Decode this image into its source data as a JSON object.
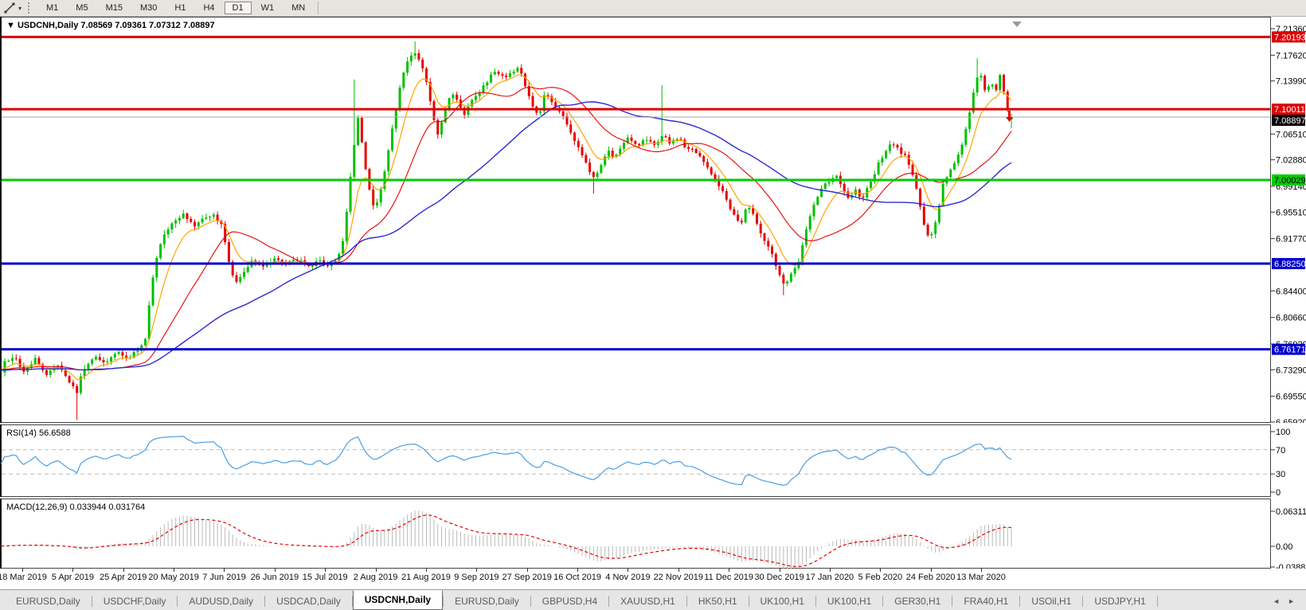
{
  "toolbar": {
    "tool_icon": "line-tool-icon",
    "caret": "▾",
    "timeframes": [
      "M1",
      "M5",
      "M15",
      "M30",
      "H1",
      "H4",
      "D1",
      "W1",
      "MN"
    ],
    "active_timeframe": "D1"
  },
  "chart": {
    "marker": "▼",
    "title": "USDCNH,Daily",
    "open": "7.08569",
    "high": "7.09361",
    "low": "7.07312",
    "close": "7.08897"
  },
  "price_axis": {
    "ticks": [
      "7.21360",
      "7.17620",
      "7.13990",
      "7.06510",
      "7.02880",
      "6.99140",
      "6.95510",
      "6.91770",
      "6.84400",
      "6.80660",
      "6.76920",
      "6.73290",
      "6.69550",
      "6.65920"
    ],
    "badges": [
      {
        "label": "7.20193",
        "price": 7.20193,
        "bg": "#dd0000",
        "fg": "#ffffff",
        "dy": 0
      },
      {
        "label": "7.10011",
        "price": 7.10011,
        "bg": "#dd0000",
        "fg": "#ffffff",
        "dy": 0
      },
      {
        "label": "7.08897",
        "price": 7.08897,
        "bg": "#000000",
        "fg": "#ffffff",
        "dy": 4
      },
      {
        "label": "7.00029",
        "price": 7.00029,
        "bg": "#00cc00",
        "fg": "#000000",
        "dy": 0
      },
      {
        "label": "6.88250",
        "price": 6.8825,
        "bg": "#0000cc",
        "fg": "#ffffff",
        "dy": 0
      },
      {
        "label": "6.76171",
        "price": 6.76171,
        "bg": "#0000cc",
        "fg": "#ffffff",
        "dy": 0
      }
    ]
  },
  "rsi_panel": {
    "label": "RSI(14) 56.6588",
    "levels": [
      {
        "label": "100",
        "value": 100,
        "dashed": false
      },
      {
        "label": "70",
        "value": 70,
        "dashed": true
      },
      {
        "label": "30",
        "value": 30,
        "dashed": true
      },
      {
        "label": "0",
        "value": 0,
        "dashed": false
      }
    ]
  },
  "macd_panel": {
    "label": "MACD(12,26,9) 0.033944 0.031764",
    "levels": [
      {
        "label": "0.063113",
        "value": 0.063113
      },
      {
        "label": "0.00",
        "value": 0
      },
      {
        "label": "-0.038872",
        "value": -0.038872
      }
    ]
  },
  "date_axis": {
    "labels": [
      "18 Mar 2019",
      "5 Apr 2019",
      "25 Apr 2019",
      "20 May 2019",
      "7 Jun 2019",
      "26 Jun 2019",
      "15 Jul 2019",
      "2 Aug 2019",
      "21 Aug 2019",
      "9 Sep 2019",
      "27 Sep 2019",
      "16 Oct 2019",
      "4 Nov 2019",
      "22 Nov 2019",
      "11 Dec 2019",
      "30 Dec 2019",
      "17 Jan 2020",
      "5 Feb 2020",
      "24 Feb 2020",
      "13 Mar 2020"
    ]
  },
  "tabs": {
    "items": [
      {
        "label": "EURUSD,Daily",
        "active": false
      },
      {
        "label": "USDCHF,Daily",
        "active": false
      },
      {
        "label": "AUDUSD,Daily",
        "active": false
      },
      {
        "label": "USDCAD,Daily",
        "active": false
      },
      {
        "label": "USDCNH,Daily",
        "active": true
      },
      {
        "label": "EURUSD,Daily",
        "active": false
      },
      {
        "label": "GBPUSD,H4",
        "active": false
      },
      {
        "label": "XAUUSD,H1",
        "active": false
      },
      {
        "label": "HK50,H1",
        "active": false
      },
      {
        "label": "UK100,H1",
        "active": false
      },
      {
        "label": "UK100,H1",
        "active": false
      },
      {
        "label": "GER30,H1",
        "active": false
      },
      {
        "label": "FRA40,H1",
        "active": false
      },
      {
        "label": "USOil,H1",
        "active": false
      },
      {
        "label": "USDJPY,H1",
        "active": false
      }
    ],
    "left_arrow": "◄",
    "right_arrow": "►"
  },
  "colors": {
    "bull": "#00c000",
    "bear": "#e60000",
    "ma_fast": "#ffa500",
    "ma_mid": "#e60000",
    "ma_slow": "#2a2ad4",
    "rsi_line": "#4c9ee0",
    "level_dash": "#bbbbbb",
    "macd_hist": "#b9b9b9",
    "macd_signal": "#e60000",
    "line_red": "#dd0000",
    "line_green": "#00cc00",
    "line_blue": "#0000cc",
    "current_price_line": "#aaaaaa",
    "frame": "#444444",
    "end_marker": "#999999"
  },
  "chart_data": {
    "type": "candlestick",
    "symbol": "USDCNH",
    "timeframe": "Daily",
    "last_ohlc": {
      "open": 7.08569,
      "high": 7.09361,
      "low": 7.07312,
      "close": 7.08897
    },
    "current_price": 7.08897,
    "y_range": [
      6.631,
      7.23
    ],
    "horizontal_lines": [
      {
        "price": 7.20193,
        "color": "#dd0000"
      },
      {
        "price": 7.10011,
        "color": "#dd0000"
      },
      {
        "price": 7.00029,
        "color": "#00cc00"
      },
      {
        "price": 6.8825,
        "color": "#0000cc"
      },
      {
        "price": 6.76171,
        "color": "#0000cc"
      }
    ],
    "moving_averages": [
      {
        "type": "ema",
        "period": 8,
        "color": "#ffa500"
      },
      {
        "type": "sma",
        "period": 22,
        "color": "#e60000"
      },
      {
        "type": "sma",
        "period": 55,
        "color": "#2a2ad4"
      }
    ],
    "rsi": {
      "period": 14,
      "value": 56.6588,
      "upper": 70,
      "lower": 30
    },
    "macd": {
      "fast": 12,
      "slow": 26,
      "signal": 9,
      "value": 0.033944,
      "signal_value": 0.031764
    },
    "price_path": [
      [
        4,
        6.742
      ],
      [
        18,
        6.752
      ],
      [
        30,
        6.73
      ],
      [
        44,
        6.748
      ],
      [
        58,
        6.726
      ],
      [
        72,
        6.742
      ],
      [
        86,
        6.718
      ],
      [
        96,
        6.7
      ],
      [
        104,
        6.732
      ],
      [
        118,
        6.752
      ],
      [
        132,
        6.742
      ],
      [
        146,
        6.758
      ],
      [
        160,
        6.747
      ],
      [
        172,
        6.76
      ],
      [
        182,
        6.772
      ],
      [
        190,
        6.85
      ],
      [
        198,
        6.9
      ],
      [
        208,
        6.928
      ],
      [
        220,
        6.945
      ],
      [
        232,
        6.952
      ],
      [
        244,
        6.934
      ],
      [
        256,
        6.946
      ],
      [
        268,
        6.952
      ],
      [
        278,
        6.936
      ],
      [
        288,
        6.882
      ],
      [
        296,
        6.856
      ],
      [
        306,
        6.872
      ],
      [
        318,
        6.888
      ],
      [
        330,
        6.876
      ],
      [
        344,
        6.89
      ],
      [
        358,
        6.88
      ],
      [
        372,
        6.89
      ],
      [
        386,
        6.878
      ],
      [
        400,
        6.886
      ],
      [
        412,
        6.878
      ],
      [
        424,
        6.888
      ],
      [
        432,
        6.92
      ],
      [
        438,
        6.985
      ],
      [
        444,
        7.045
      ],
      [
        450,
        7.09
      ],
      [
        456,
        7.04
      ],
      [
        462,
        6.995
      ],
      [
        470,
        6.96
      ],
      [
        478,
        6.985
      ],
      [
        486,
        7.03
      ],
      [
        494,
        7.08
      ],
      [
        502,
        7.13
      ],
      [
        510,
        7.165
      ],
      [
        518,
        7.18
      ],
      [
        526,
        7.172
      ],
      [
        534,
        7.15
      ],
      [
        542,
        7.1
      ],
      [
        550,
        7.062
      ],
      [
        558,
        7.095
      ],
      [
        566,
        7.125
      ],
      [
        574,
        7.112
      ],
      [
        582,
        7.09
      ],
      [
        592,
        7.11
      ],
      [
        602,
        7.125
      ],
      [
        612,
        7.14
      ],
      [
        622,
        7.155
      ],
      [
        632,
        7.145
      ],
      [
        642,
        7.15
      ],
      [
        652,
        7.16
      ],
      [
        660,
        7.13
      ],
      [
        668,
        7.105
      ],
      [
        676,
        7.09
      ],
      [
        684,
        7.12
      ],
      [
        692,
        7.112
      ],
      [
        700,
        7.1
      ],
      [
        710,
        7.085
      ],
      [
        720,
        7.06
      ],
      [
        730,
        7.04
      ],
      [
        740,
        7.01
      ],
      [
        748,
        7.002
      ],
      [
        756,
        7.025
      ],
      [
        764,
        7.04
      ],
      [
        772,
        7.03
      ],
      [
        780,
        7.048
      ],
      [
        790,
        7.06
      ],
      [
        800,
        7.048
      ],
      [
        812,
        7.058
      ],
      [
        824,
        7.048
      ],
      [
        833,
        7.065
      ],
      [
        842,
        7.052
      ],
      [
        852,
        7.06
      ],
      [
        862,
        7.045
      ],
      [
        872,
        7.042
      ],
      [
        882,
        7.03
      ],
      [
        892,
        7.012
      ],
      [
        902,
        6.995
      ],
      [
        912,
        6.972
      ],
      [
        922,
        6.95
      ],
      [
        930,
        6.934
      ],
      [
        938,
        6.965
      ],
      [
        946,
        6.952
      ],
      [
        954,
        6.93
      ],
      [
        962,
        6.912
      ],
      [
        970,
        6.895
      ],
      [
        978,
        6.868
      ],
      [
        986,
        6.852
      ],
      [
        994,
        6.868
      ],
      [
        1002,
        6.88
      ],
      [
        1010,
        6.92
      ],
      [
        1018,
        6.952
      ],
      [
        1026,
        6.975
      ],
      [
        1034,
        6.992
      ],
      [
        1042,
        6.998
      ],
      [
        1050,
        7.005
      ],
      [
        1058,
        6.992
      ],
      [
        1066,
        6.972
      ],
      [
        1074,
        6.988
      ],
      [
        1082,
        6.972
      ],
      [
        1090,
        6.992
      ],
      [
        1098,
        7.01
      ],
      [
        1106,
        7.03
      ],
      [
        1114,
        7.045
      ],
      [
        1122,
        7.052
      ],
      [
        1130,
        7.04
      ],
      [
        1138,
        7.032
      ],
      [
        1146,
        7.01
      ],
      [
        1154,
        6.972
      ],
      [
        1162,
        6.93
      ],
      [
        1168,
        6.92
      ],
      [
        1176,
        6.945
      ],
      [
        1184,
        6.995
      ],
      [
        1192,
        7.012
      ],
      [
        1200,
        7.028
      ],
      [
        1208,
        7.048
      ],
      [
        1216,
        7.09
      ],
      [
        1224,
        7.13
      ],
      [
        1230,
        7.158
      ],
      [
        1238,
        7.12
      ],
      [
        1244,
        7.14
      ],
      [
        1250,
        7.125
      ],
      [
        1256,
        7.15
      ],
      [
        1262,
        7.115
      ],
      [
        1268,
        7.089
      ]
    ],
    "spikes": [
      {
        "x": 96,
        "low": 6.662
      },
      {
        "x": 445,
        "high": 7.142
      },
      {
        "x": 520,
        "high": 7.196
      },
      {
        "x": 745,
        "low": 6.981
      },
      {
        "x": 833,
        "high": 7.134
      },
      {
        "x": 986,
        "low": 6.838
      },
      {
        "x": 1228,
        "high": 7.172
      }
    ]
  }
}
